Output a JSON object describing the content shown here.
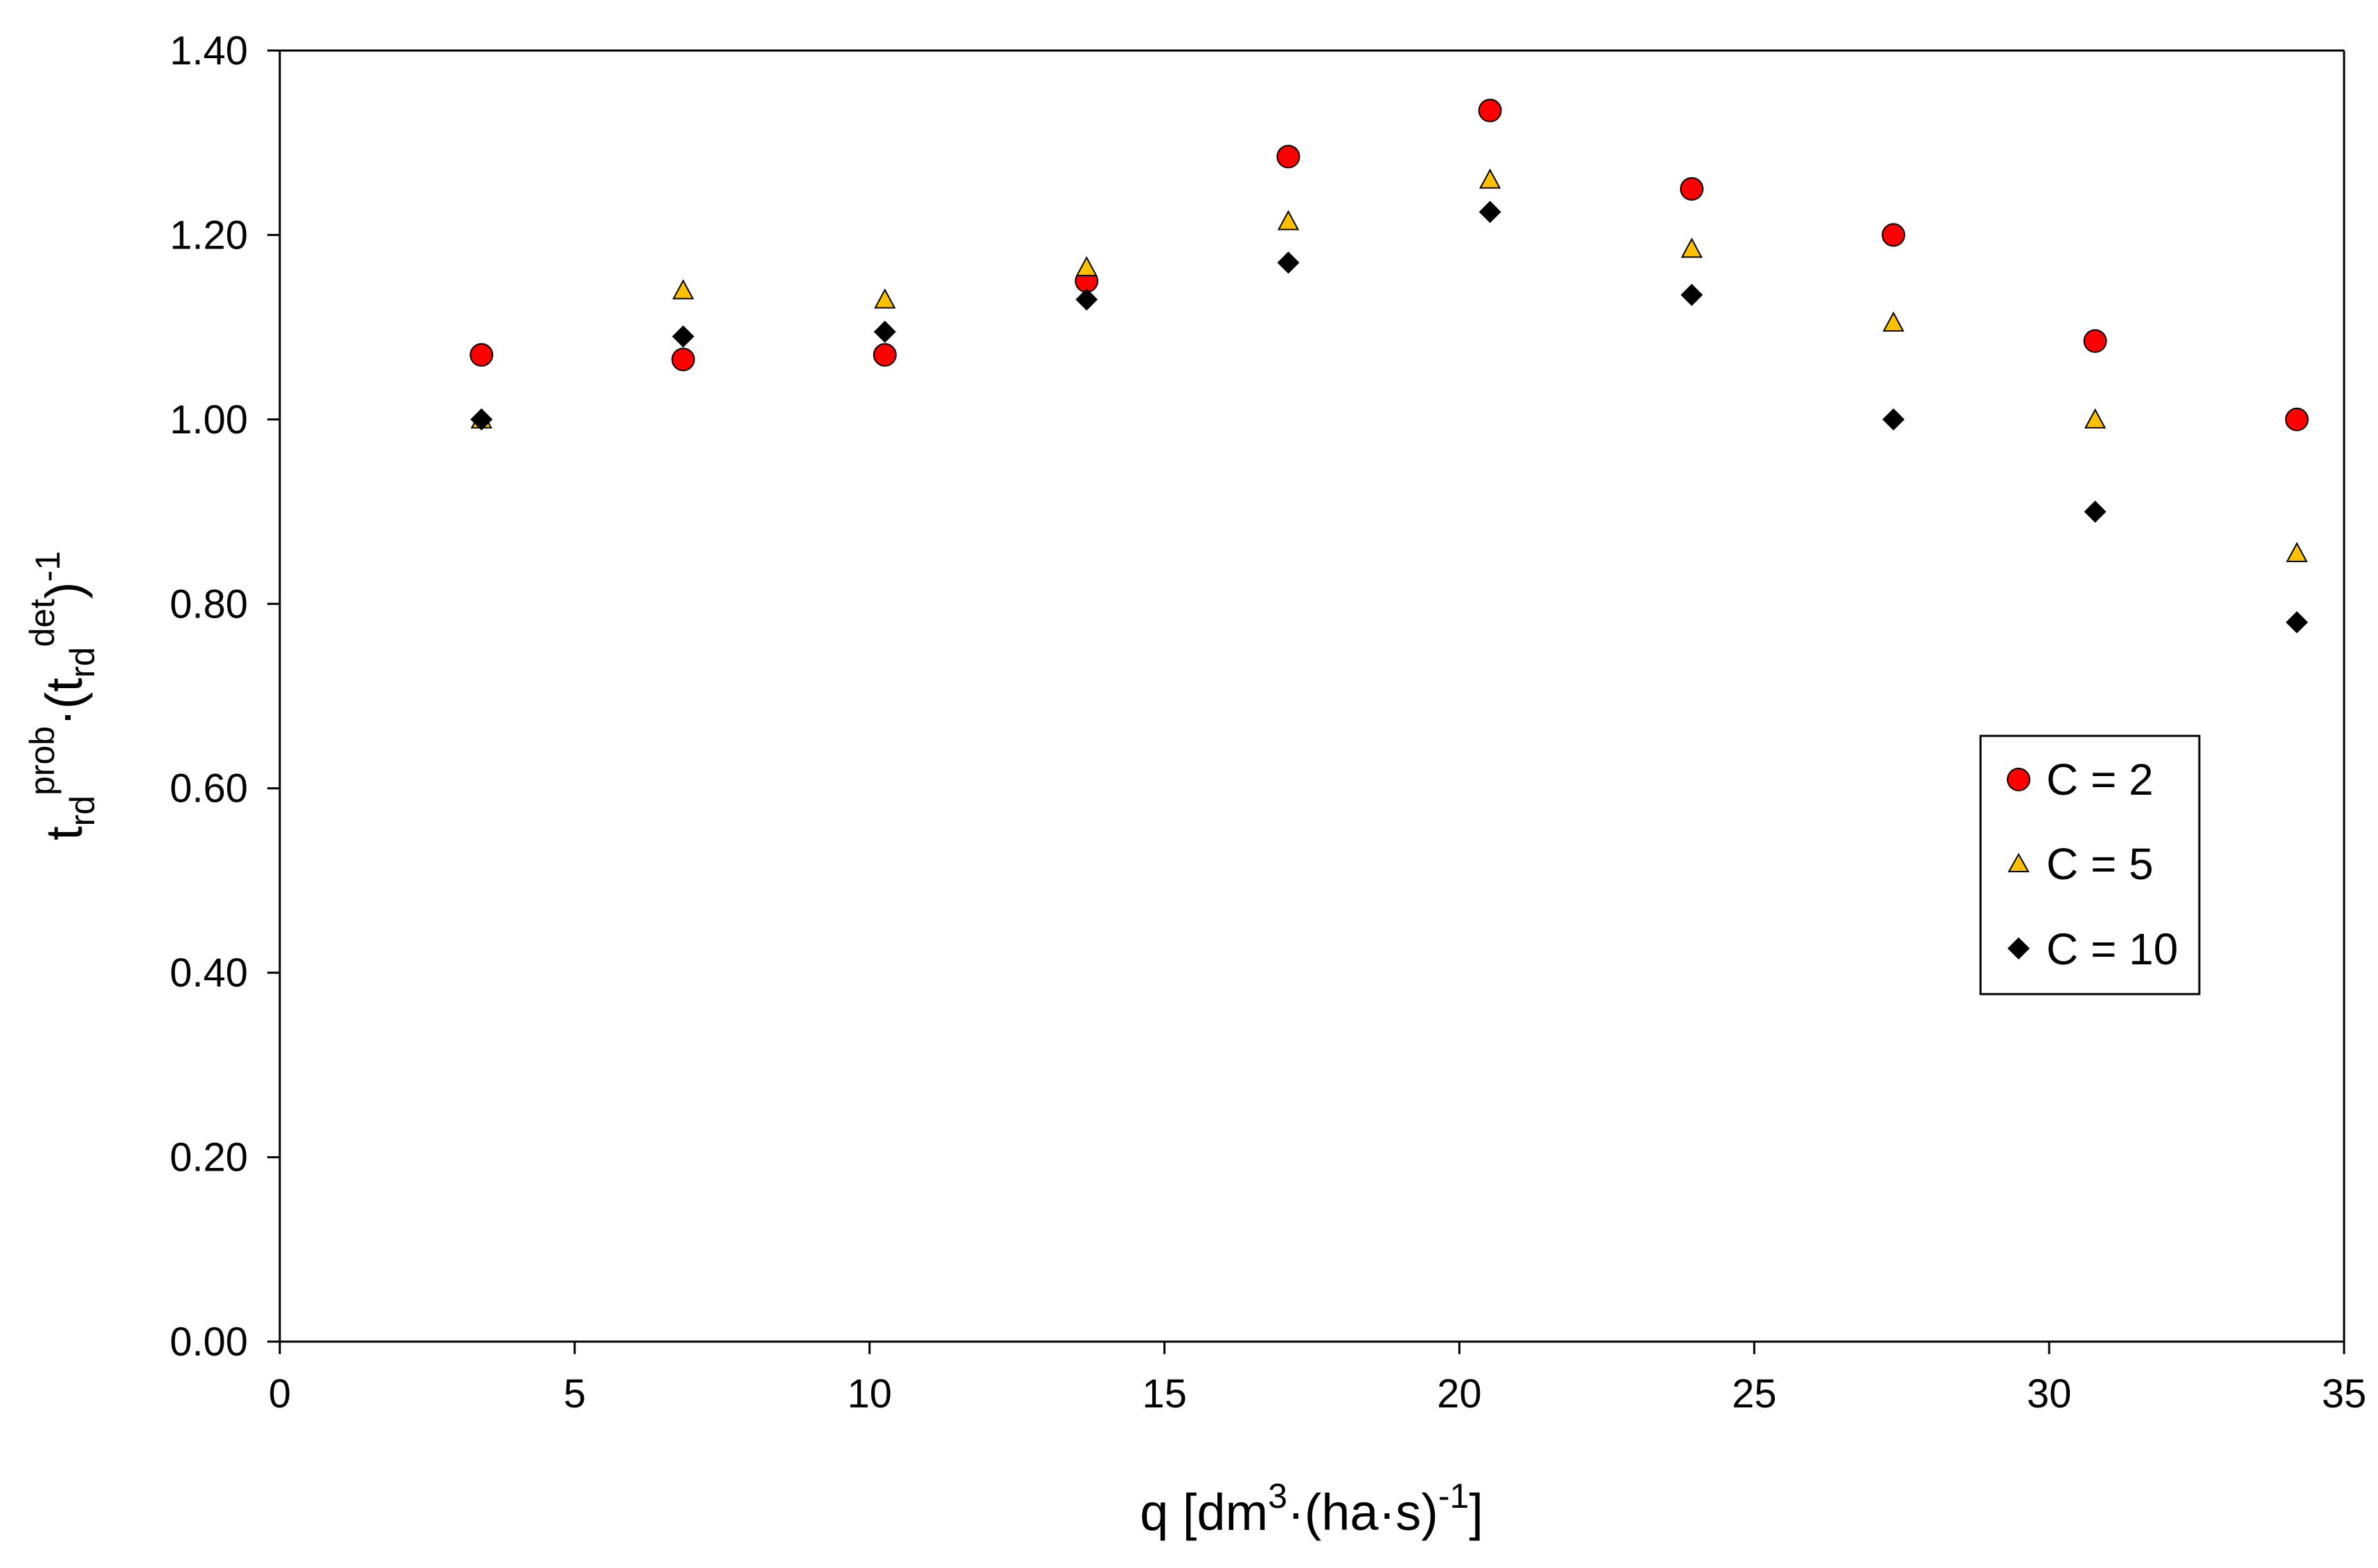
{
  "chart_data": {
    "type": "scatter",
    "xlabel": "q [dm³·(ha·s)⁻¹]",
    "xlabel_parts": {
      "main": "q [dm",
      "sup1": "3",
      "mid": "·(ha·s)",
      "sup2": "-1",
      "end": "]"
    },
    "ylabel": "t_rd^prob·(t_rd^det)^-1",
    "ylabel_parts": {
      "t1": "t",
      "sub1": "rd",
      "sup1": "prob",
      "dot": "·(t",
      "sub2": "rd",
      "sup2": "det",
      "close": ")",
      "sup3": "-1"
    },
    "xlim": [
      0,
      35
    ],
    "ylim": [
      0,
      1.4
    ],
    "x_ticks": [
      0,
      5,
      10,
      15,
      20,
      25,
      30,
      35
    ],
    "x_tick_labels": [
      "0",
      "5",
      "10",
      "15",
      "20",
      "25",
      "30",
      "35"
    ],
    "y_ticks": [
      0,
      0.2,
      0.4,
      0.6,
      0.8,
      1.0,
      1.2,
      1.4
    ],
    "y_tick_labels": [
      "0.00",
      "0.20",
      "0.40",
      "0.60",
      "0.80",
      "1.00",
      "1.20",
      "1.40"
    ],
    "grid": false,
    "legend_position": "right",
    "x": [
      3.42,
      6.84,
      10.26,
      13.68,
      17.1,
      20.52,
      23.94,
      27.36,
      30.78,
      34.2
    ],
    "series": [
      {
        "name": "C = 2",
        "marker": "circle",
        "color": "#ff0000",
        "values": [
          1.07,
          1.065,
          1.07,
          1.15,
          1.285,
          1.335,
          1.25,
          1.2,
          1.085,
          1.0
        ]
      },
      {
        "name": "C = 5",
        "marker": "triangle",
        "color": "#ffc000",
        "values": [
          1.0,
          1.14,
          1.13,
          1.165,
          1.215,
          1.26,
          1.185,
          1.105,
          1.0,
          0.855
        ]
      },
      {
        "name": "C = 10",
        "marker": "diamond",
        "color": "#000000",
        "values": [
          1.0,
          1.09,
          1.095,
          1.13,
          1.17,
          1.225,
          1.135,
          1.0,
          0.9,
          0.78
        ]
      }
    ]
  }
}
